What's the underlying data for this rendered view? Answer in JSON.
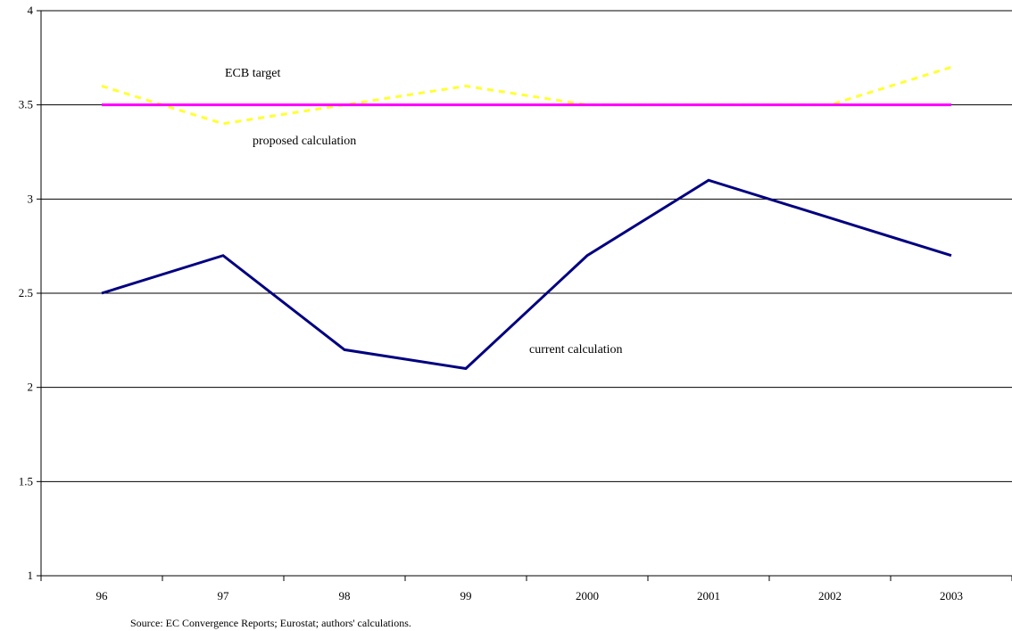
{
  "chart_data": {
    "type": "line",
    "categories": [
      "96",
      "97",
      "98",
      "99",
      "2000",
      "2001",
      "2002",
      "2003"
    ],
    "ylim": [
      1,
      4
    ],
    "yticks": [
      "1",
      "1.5",
      "2",
      "2.5",
      "3",
      "3.5",
      "4"
    ],
    "grid": true,
    "series": [
      {
        "name": "current calculation",
        "values": [
          2.5,
          2.7,
          2.2,
          2.1,
          2.7,
          3.1,
          2.9,
          2.7
        ],
        "color": "#000080",
        "style": "solid"
      },
      {
        "name": "proposed calculation",
        "values": [
          3.6,
          3.4,
          3.5,
          3.6,
          3.5,
          3.5,
          3.5,
          3.7
        ],
        "color": "#ffff33",
        "style": "dashed"
      },
      {
        "name": "ECB target",
        "values": [
          3.5,
          3.5,
          3.5,
          3.5,
          3.5,
          3.5,
          3.5,
          3.5
        ],
        "color": "#ff00ff",
        "style": "solid"
      }
    ],
    "annotations": [
      "ECB target",
      "proposed calculation",
      "current calculation"
    ],
    "source": "Source: EC Convergence Reports; Eurostat; authors' calculations."
  }
}
